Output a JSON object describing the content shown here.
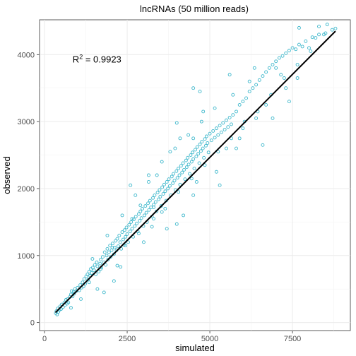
{
  "chart_data": {
    "type": "scatter",
    "title": "lncRNAs (50 million reads)",
    "xlabel": "simulated",
    "ylabel": "observed",
    "xlim": [
      -150,
      9250
    ],
    "ylim": [
      -120,
      4520
    ],
    "x_ticks": [
      0,
      2500,
      5000,
      7500
    ],
    "y_ticks": [
      0,
      1000,
      2000,
      3000,
      4000
    ],
    "x_tick_labels": [
      "0",
      "2500",
      "5000",
      "7500"
    ],
    "y_tick_labels": [
      "0",
      "1000",
      "2000",
      "3000",
      "4000"
    ],
    "grid": true,
    "point_color": "#3fb8cc",
    "line_color": "#000000",
    "annotation": {
      "base": "R",
      "superscript": "2",
      "text": " = 0.9923",
      "x": 850,
      "y": 3880
    },
    "fit_line": {
      "x": [
        330,
        8800
      ],
      "y": [
        150,
        4350
      ]
    },
    "points": [
      [
        340,
        140
      ],
      [
        360,
        170
      ],
      [
        380,
        120
      ],
      [
        400,
        210
      ],
      [
        420,
        160
      ],
      [
        450,
        190
      ],
      [
        470,
        240
      ],
      [
        500,
        200
      ],
      [
        520,
        270
      ],
      [
        560,
        230
      ],
      [
        600,
        300
      ],
      [
        620,
        260
      ],
      [
        650,
        340
      ],
      [
        680,
        280
      ],
      [
        700,
        350
      ],
      [
        720,
        300
      ],
      [
        760,
        380
      ],
      [
        800,
        420
      ],
      [
        820,
        470
      ],
      [
        850,
        390
      ],
      [
        880,
        460
      ],
      [
        900,
        430
      ],
      [
        920,
        500
      ],
      [
        960,
        470
      ],
      [
        1000,
        520
      ],
      [
        1050,
        480
      ],
      [
        1080,
        560
      ],
      [
        1120,
        520
      ],
      [
        1150,
        600
      ],
      [
        1180,
        540
      ],
      [
        1200,
        650
      ],
      [
        1230,
        580
      ],
      [
        1260,
        690
      ],
      [
        1300,
        720
      ],
      [
        1320,
        640
      ],
      [
        1350,
        760
      ],
      [
        1380,
        700
      ],
      [
        1400,
        800
      ],
      [
        1430,
        740
      ],
      [
        1460,
        820
      ],
      [
        1500,
        780
      ],
      [
        1520,
        860
      ],
      [
        1550,
        720
      ],
      [
        1580,
        900
      ],
      [
        1600,
        840
      ],
      [
        1640,
        760
      ],
      [
        1680,
        880
      ],
      [
        1700,
        940
      ],
      [
        1720,
        820
      ],
      [
        1760,
        980
      ],
      [
        1800,
        900
      ],
      [
        1820,
        1050
      ],
      [
        1850,
        860
      ],
      [
        1880,
        1000
      ],
      [
        1900,
        1100
      ],
      [
        1920,
        940
      ],
      [
        1950,
        1050
      ],
      [
        1980,
        1150
      ],
      [
        2000,
        980
      ],
      [
        2030,
        1080
      ],
      [
        2060,
        1180
      ],
      [
        2100,
        1020
      ],
      [
        2120,
        1120
      ],
      [
        2150,
        1220
      ],
      [
        2180,
        1080
      ],
      [
        2200,
        1250
      ],
      [
        2230,
        1140
      ],
      [
        2260,
        1300
      ],
      [
        2290,
        1200
      ],
      [
        2320,
        1100
      ],
      [
        2350,
        1350
      ],
      [
        2380,
        1240
      ],
      [
        2400,
        1160
      ],
      [
        2420,
        1380
      ],
      [
        2450,
        1280
      ],
      [
        2480,
        1420
      ],
      [
        2500,
        1320
      ],
      [
        2530,
        1200
      ],
      [
        2560,
        1460
      ],
      [
        2590,
        1360
      ],
      [
        2620,
        1500
      ],
      [
        2650,
        1400
      ],
      [
        2680,
        1280
      ],
      [
        2700,
        1540
      ],
      [
        2730,
        1440
      ],
      [
        2760,
        1580
      ],
      [
        2790,
        1480
      ],
      [
        2820,
        1360
      ],
      [
        2850,
        1620
      ],
      [
        2880,
        1520
      ],
      [
        2900,
        1660
      ],
      [
        2930,
        1560
      ],
      [
        2960,
        1700
      ],
      [
        2990,
        1440
      ],
      [
        3020,
        1600
      ],
      [
        3050,
        1740
      ],
      [
        3080,
        1640
      ],
      [
        3100,
        1500
      ],
      [
        3130,
        1780
      ],
      [
        3160,
        1680
      ],
      [
        3190,
        1820
      ],
      [
        3220,
        1720
      ],
      [
        3250,
        1580
      ],
      [
        3280,
        1860
      ],
      [
        3300,
        1760
      ],
      [
        3330,
        1900
      ],
      [
        3360,
        1800
      ],
      [
        3390,
        1660
      ],
      [
        3420,
        1940
      ],
      [
        3450,
        1840
      ],
      [
        3480,
        1980
      ],
      [
        3500,
        1880
      ],
      [
        3530,
        1740
      ],
      [
        3560,
        2020
      ],
      [
        3590,
        1920
      ],
      [
        3620,
        2060
      ],
      [
        3650,
        1960
      ],
      [
        3680,
        1820
      ],
      [
        3700,
        2100
      ],
      [
        3730,
        2000
      ],
      [
        3760,
        2140
      ],
      [
        3790,
        2040
      ],
      [
        3820,
        1900
      ],
      [
        3850,
        2180
      ],
      [
        3880,
        2080
      ],
      [
        3900,
        2220
      ],
      [
        3930,
        2120
      ],
      [
        3960,
        1980
      ],
      [
        3990,
        2260
      ],
      [
        4020,
        2160
      ],
      [
        4050,
        2300
      ],
      [
        4080,
        2200
      ],
      [
        4100,
        2060
      ],
      [
        4130,
        2340
      ],
      [
        4160,
        2240
      ],
      [
        4190,
        2380
      ],
      [
        4220,
        2280
      ],
      [
        4250,
        2140
      ],
      [
        4280,
        2420
      ],
      [
        4300,
        2320
      ],
      [
        4330,
        2460
      ],
      [
        4360,
        2360
      ],
      [
        4390,
        2220
      ],
      [
        4420,
        2500
      ],
      [
        4450,
        2400
      ],
      [
        4480,
        2540
      ],
      [
        4500,
        2440
      ],
      [
        4530,
        2300
      ],
      [
        4560,
        2580
      ],
      [
        4590,
        2480
      ],
      [
        4620,
        2620
      ],
      [
        4650,
        2520
      ],
      [
        4680,
        2380
      ],
      [
        4700,
        2660
      ],
      [
        4730,
        2560
      ],
      [
        4760,
        2700
      ],
      [
        4790,
        2600
      ],
      [
        4820,
        2460
      ],
      [
        4850,
        2740
      ],
      [
        4880,
        2640
      ],
      [
        4900,
        2780
      ],
      [
        4930,
        2680
      ],
      [
        4960,
        2540
      ],
      [
        5000,
        2820
      ],
      [
        5050,
        2720
      ],
      [
        5100,
        2860
      ],
      [
        5150,
        2760
      ],
      [
        5200,
        2900
      ],
      [
        5250,
        2800
      ],
      [
        5300,
        2940
      ],
      [
        5350,
        2840
      ],
      [
        5400,
        2980
      ],
      [
        5450,
        2880
      ],
      [
        5500,
        3020
      ],
      [
        5550,
        2920
      ],
      [
        5600,
        3060
      ],
      [
        5650,
        2960
      ],
      [
        5700,
        3100
      ],
      [
        5800,
        3150
      ],
      [
        5900,
        3250
      ],
      [
        6000,
        3300
      ],
      [
        6100,
        3350
      ],
      [
        6200,
        3450
      ],
      [
        6300,
        3500
      ],
      [
        6400,
        3550
      ],
      [
        6500,
        3620
      ],
      [
        6600,
        3680
      ],
      [
        6700,
        3740
      ],
      [
        6800,
        3800
      ],
      [
        6900,
        3850
      ],
      [
        7000,
        3900
      ],
      [
        7100,
        3950
      ],
      [
        7200,
        3980
      ],
      [
        7300,
        4020
      ],
      [
        7400,
        4060
      ],
      [
        7500,
        4100
      ],
      [
        7600,
        4080
      ],
      [
        7700,
        4150
      ],
      [
        7800,
        4120
      ],
      [
        7900,
        4200
      ],
      [
        8100,
        4260
      ],
      [
        8200,
        4250
      ],
      [
        8300,
        4300
      ],
      [
        8500,
        4320
      ],
      [
        8700,
        4370
      ],
      [
        8800,
        4390
      ],
      [
        2600,
        2050
      ],
      [
        4000,
        1470
      ],
      [
        5200,
        2250
      ],
      [
        3300,
        1720
      ],
      [
        2300,
        830
      ],
      [
        5800,
        2600
      ],
      [
        6400,
        3050
      ],
      [
        7300,
        3500
      ],
      [
        4600,
        2100
      ],
      [
        3800,
        2550
      ],
      [
        1800,
        450
      ],
      [
        2200,
        850
      ],
      [
        2650,
        1550
      ],
      [
        3150,
        2100
      ],
      [
        4000,
        2980
      ],
      [
        4500,
        3500
      ],
      [
        4700,
        3450
      ],
      [
        5600,
        3700
      ],
      [
        6600,
        2650
      ],
      [
        5300,
        2050
      ],
      [
        3550,
        1650
      ],
      [
        4500,
        2750
      ],
      [
        5900,
        2750
      ],
      [
        6700,
        3250
      ],
      [
        7650,
        3650
      ],
      [
        3300,
        1550
      ],
      [
        4200,
        1600
      ],
      [
        2100,
        620
      ],
      [
        6350,
        3800
      ],
      [
        7150,
        3700
      ],
      [
        8000,
        4100
      ],
      [
        7700,
        4400
      ],
      [
        8300,
        4420
      ],
      [
        8450,
        4300
      ],
      [
        8550,
        4450
      ],
      [
        1600,
        500
      ],
      [
        3000,
        1200
      ],
      [
        3700,
        1400
      ],
      [
        4500,
        1900
      ],
      [
        5500,
        2600
      ],
      [
        6000,
        2900
      ],
      [
        6900,
        3050
      ],
      [
        7400,
        3300
      ],
      [
        2900,
        1750
      ],
      [
        3400,
        2200
      ],
      [
        4100,
        2750
      ],
      [
        4800,
        3150
      ],
      [
        5700,
        3400
      ],
      [
        6200,
        3600
      ],
      [
        7000,
        3800
      ],
      [
        800,
        220
      ],
      [
        1100,
        350
      ],
      [
        1350,
        600
      ],
      [
        1700,
        800
      ],
      [
        2050,
        1120
      ],
      [
        2450,
        1150
      ],
      [
        2850,
        1330
      ],
      [
        3250,
        1430
      ],
      [
        3650,
        1700
      ],
      [
        4050,
        1950
      ],
      [
        4450,
        2150
      ],
      [
        4850,
        2350
      ],
      [
        5250,
        2550
      ],
      [
        5650,
        2750
      ],
      [
        6050,
        3000
      ],
      [
        6450,
        3150
      ],
      [
        6850,
        3400
      ],
      [
        7250,
        3650
      ],
      [
        7650,
        3850
      ],
      [
        8050,
        4050
      ],
      [
        1450,
        950
      ],
      [
        1900,
        1300
      ],
      [
        2350,
        1600
      ],
      [
        2750,
        1900
      ],
      [
        3150,
        2200
      ],
      [
        3550,
        2400
      ],
      [
        3950,
        2600
      ],
      [
        4350,
        2800
      ],
      [
        4750,
        3000
      ],
      [
        5150,
        3200
      ]
    ]
  }
}
